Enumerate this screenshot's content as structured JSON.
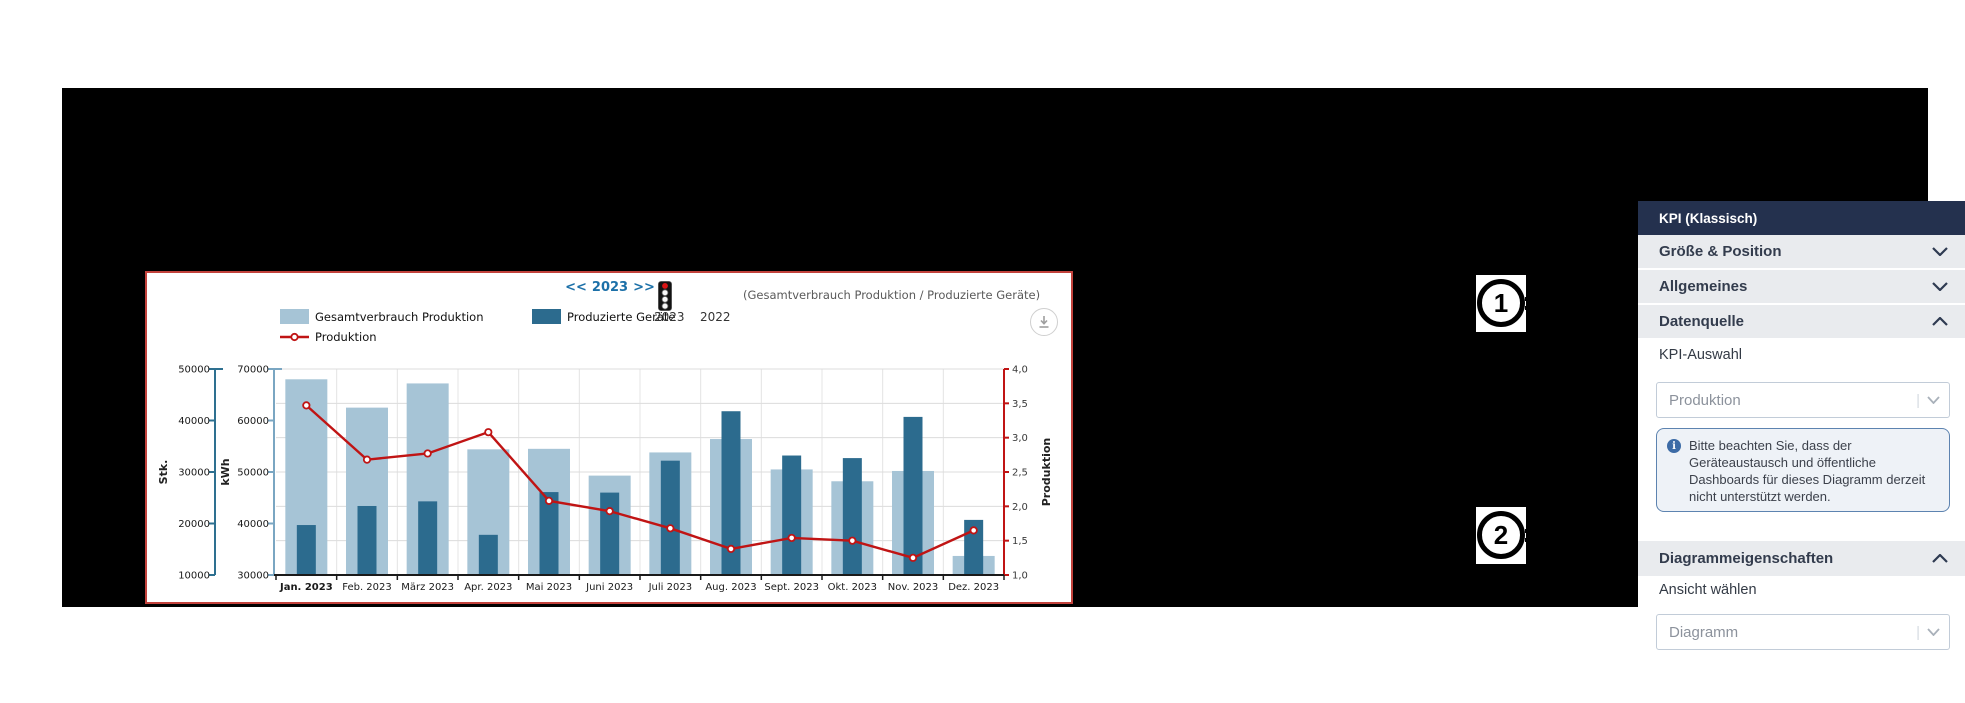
{
  "chart": {
    "nav": {
      "prev": "<<",
      "year": "2023",
      "next": ">>"
    },
    "subtitle": "(Gesamtverbrauch Produktion / Produzierte Geräte)",
    "year_toggle": {
      "selected": "2023",
      "other": "2022"
    },
    "legend": {
      "bar1_label": "Gesamtverbrauch Produktion",
      "bar2_label": "Produzierte Geräte",
      "line_label": "Produktion"
    },
    "icons": {
      "traffic_light": "traffic-light-icon",
      "download": "download-icon"
    },
    "colors": {
      "bar1": "#a6c4d6",
      "bar2": "#2c6b8e",
      "line": "#c01414",
      "border": "#c2423c",
      "stk_axis": "#2e7090",
      "kwh_axis": "#7aa6c2"
    }
  },
  "chart_data": {
    "type": "bar",
    "title": "<< 2023 >>",
    "subtitle": "(Gesamtverbrauch Produktion / Produzierte Geräte)",
    "categories": [
      "Jan. 2023",
      "Feb. 2023",
      "März 2023",
      "Apr. 2023",
      "Mai 2023",
      "Juni 2023",
      "Juli 2023",
      "Aug. 2023",
      "Sept. 2023",
      "Okt. 2023",
      "Nov. 2023",
      "Dez. 2023"
    ],
    "series": [
      {
        "name": "Gesamtverbrauch Produktion",
        "type": "bar",
        "axis_key": "kwh",
        "color": "#a6c4d6",
        "values": [
          68000,
          62500,
          67200,
          54400,
          54500,
          49300,
          53800,
          56400,
          50500,
          48200,
          50200,
          33700
        ]
      },
      {
        "name": "Produzierte Geräte",
        "type": "bar",
        "axis_key": "stk",
        "color": "#2c6b8e",
        "values": [
          19700,
          23400,
          24300,
          17800,
          26100,
          26000,
          32200,
          41800,
          33200,
          32700,
          40700,
          20700
        ]
      },
      {
        "name": "Produktion",
        "type": "line",
        "axis_key": "produktion",
        "color": "#c01414",
        "values": [
          3.47,
          2.68,
          2.77,
          3.08,
          2.08,
          1.93,
          1.68,
          1.38,
          1.54,
          1.5,
          1.25,
          1.65
        ]
      }
    ],
    "axes": {
      "stk": {
        "label": "Stk.",
        "min": 10000,
        "max": 50000,
        "step": 10000
      },
      "kwh": {
        "label": "kWh",
        "min": 30000,
        "max": 70000,
        "step": 10000
      },
      "produktion": {
        "label": "Produktion",
        "min": 1.0,
        "max": 4.0,
        "step": 0.5
      }
    },
    "grid": true,
    "legend_position": "top-left",
    "x_first_label_bold": true
  },
  "panel": {
    "title": "KPI (Klassisch)",
    "sections": [
      {
        "label": "Größe & Position",
        "state": "collapsed"
      },
      {
        "label": "Allgemeines",
        "state": "collapsed"
      },
      {
        "label": "Datenquelle",
        "state": "expanded"
      }
    ],
    "kpi_select": {
      "label": "KPI-Auswahl",
      "value": "Produktion"
    },
    "info_note": "Bitte beachten Sie, dass der Geräteaustausch und öffentliche Dashboards für dieses Diagramm derzeit nicht unterstützt werden.",
    "diagram_section": {
      "label": "Diagrammeigenschaften",
      "state": "expanded"
    },
    "view_select": {
      "label": "Ansicht wählen",
      "value": "Diagramm"
    }
  },
  "callouts": [
    {
      "number": "1"
    },
    {
      "number": "2"
    }
  ]
}
